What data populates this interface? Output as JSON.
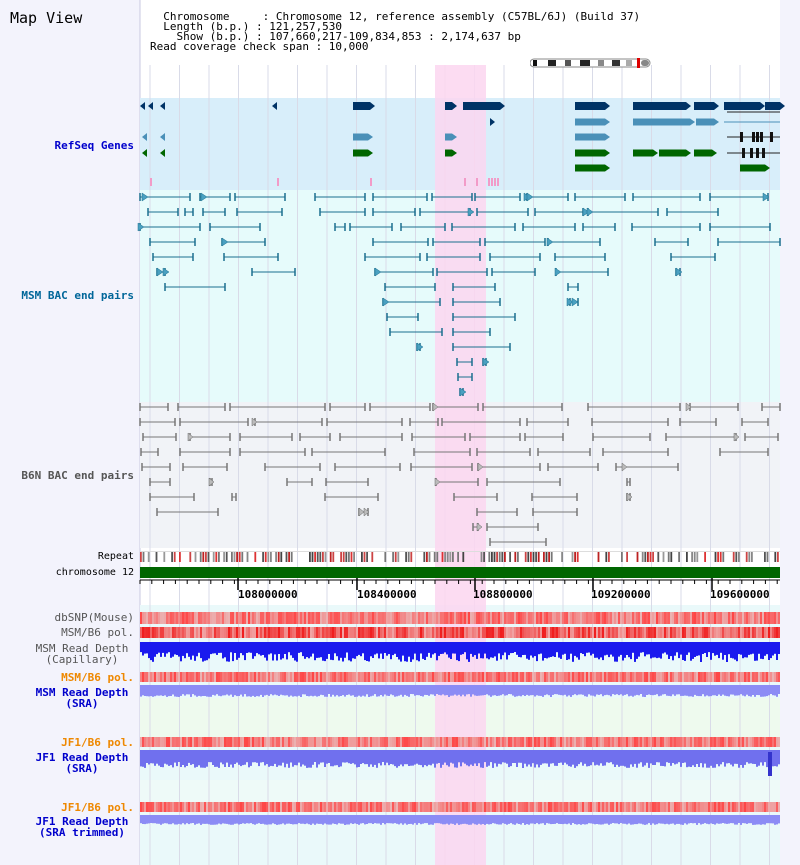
{
  "header": {
    "title": "Map View",
    "info_lines": [
      "  Chromosome     : Chromosome 12, reference assembly (C57BL/6J) (Build 37)",
      "  Length (b.p.) : 121,257,530",
      "    Show (b.p.) : 107,660,217-109,834,853 : 2,174,637 bp",
      "Read coverage check span : 10,000"
    ]
  },
  "tracks": {
    "refseq": {
      "label": "RefSeq Genes",
      "color": "#0000cc"
    },
    "msm_bac": {
      "label": "MSM BAC end pairs",
      "color": "#006699"
    },
    "b6n_bac": {
      "label": "B6N BAC end pairs",
      "color": "#555555"
    },
    "repeat": {
      "label": "Repeat"
    },
    "chromosome": {
      "label": "chromosome 12"
    },
    "dbsnp": {
      "label": "dbSNP(Mouse)",
      "color": "#555555"
    },
    "msm_b6_pol": {
      "label": "MSM/B6 pol.",
      "color": "#555555"
    },
    "msm_depth_cap": {
      "label": "MSM Read Depth\n(Capillary)",
      "color": "#555555"
    },
    "msm_b6_pol2": {
      "label": "MSM/B6 pol.",
      "color": "#ee8800"
    },
    "msm_depth_sra": {
      "label": "MSM Read Depth\n(SRA)",
      "color": "#0000cc"
    },
    "jf1_b6_pol": {
      "label": "JF1/B6 pol.",
      "color": "#ee8800"
    },
    "jf1_depth_sra": {
      "label": "JF1 Read Depth\n(SRA)",
      "color": "#0000cc"
    },
    "jf1_b6_pol2": {
      "label": "JF1/B6 pol.",
      "color": "#ee8800"
    },
    "jf1_depth_trim": {
      "label": "JF1 Read Depth\n(SRA trimmed)",
      "color": "#0000cc"
    }
  },
  "axis": {
    "ticks": [
      "108000000",
      "108400000",
      "108800000",
      "109200000",
      "109600000"
    ]
  },
  "colors": {
    "highlight": "#fbd6f0",
    "refseq_bg": "#d8eefa",
    "msm_bg": "#e6fbfb",
    "b6n_bg": "#f1f3f7",
    "gene_dark": "#003366",
    "gene_mid": "#4a90b8",
    "gene_green": "#006600",
    "chrom_green": "#006600"
  }
}
